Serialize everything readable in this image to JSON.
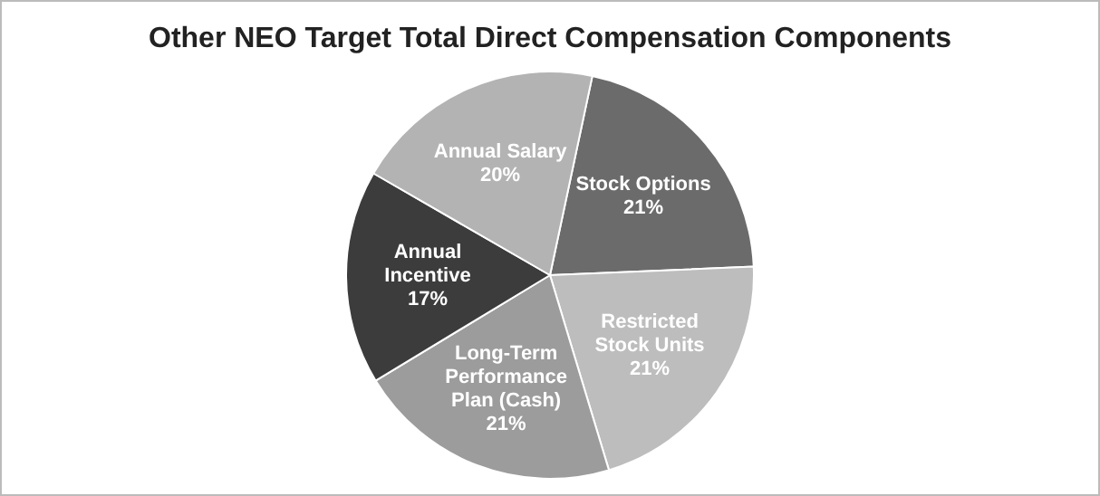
{
  "chart_data": {
    "type": "pie",
    "title": "Other NEO Target Total Direct Compensation Components",
    "categories": [
      "Stock Options",
      "Restricted Stock Units",
      "Long-Term Performance Plan (Cash)",
      "Annual Incentive",
      "Annual Salary"
    ],
    "values": [
      21,
      21,
      21,
      17,
      20
    ],
    "colors": [
      "#6b6b6b",
      "#bdbdbd",
      "#9c9c9c",
      "#3c3c3c",
      "#b3b3b3"
    ],
    "value_labels": [
      "21%",
      "21%",
      "21%",
      "17%",
      "20%"
    ],
    "legend": false
  }
}
